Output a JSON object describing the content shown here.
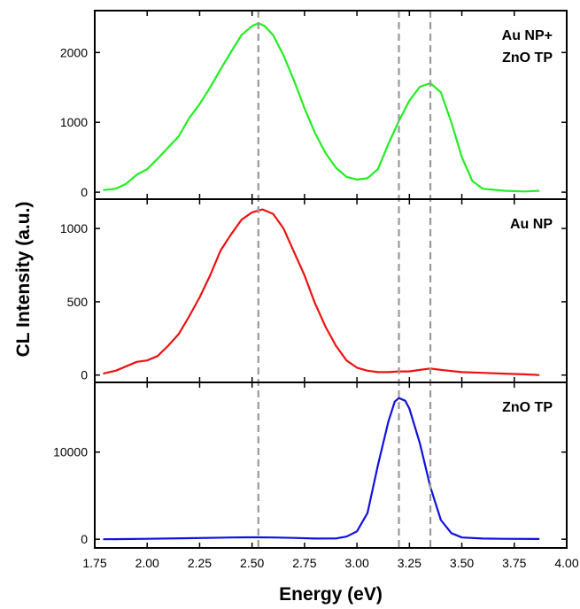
{
  "chart_data": {
    "type": "line",
    "xlabel": "Energy (eV)",
    "ylabel": "CL Intensity (a.u.)",
    "xlim": [
      1.75,
      4.0
    ],
    "x_ticks": [
      "1.75",
      "2.00",
      "2.25",
      "2.50",
      "2.75",
      "3.00",
      "3.25",
      "3.50",
      "3.75",
      "4.00"
    ],
    "reference_lines_x": [
      2.53,
      3.2,
      3.35
    ],
    "reference_line_color": "#999999",
    "panels": [
      {
        "label_lines": [
          "Au NP+",
          "ZnO TP"
        ],
        "ylim": [
          -100,
          2600
        ],
        "y_ticks": [
          0,
          1000,
          2000
        ],
        "y_tick_labels": [
          "0",
          "1000",
          "2000"
        ],
        "series": [
          {
            "color": "#22ee22",
            "x": [
              1.79,
              1.85,
              1.9,
              1.95,
              2.0,
              2.05,
              2.1,
              2.15,
              2.2,
              2.25,
              2.3,
              2.35,
              2.4,
              2.45,
              2.5,
              2.53,
              2.56,
              2.6,
              2.65,
              2.7,
              2.75,
              2.8,
              2.85,
              2.9,
              2.95,
              3.0,
              3.05,
              3.1,
              3.15,
              3.2,
              3.25,
              3.3,
              3.35,
              3.4,
              3.45,
              3.5,
              3.55,
              3.6,
              3.7,
              3.8,
              3.87
            ],
            "y": [
              30,
              50,
              120,
              250,
              330,
              480,
              640,
              800,
              1060,
              1260,
              1500,
              1760,
              2010,
              2250,
              2380,
              2420,
              2380,
              2250,
              1960,
              1600,
              1200,
              850,
              560,
              350,
              220,
              180,
              200,
              330,
              690,
              1020,
              1310,
              1510,
              1560,
              1430,
              1000,
              500,
              160,
              50,
              20,
              10,
              20
            ]
          }
        ]
      },
      {
        "label_lines": [
          "Au NP"
        ],
        "ylim": [
          -50,
          1200
        ],
        "y_ticks": [
          0,
          500,
          1000
        ],
        "y_tick_labels": [
          "0",
          "500",
          "1000"
        ],
        "series": [
          {
            "color": "#ee1111",
            "x": [
              1.79,
              1.85,
              1.9,
              1.95,
              2.0,
              2.05,
              2.1,
              2.15,
              2.2,
              2.25,
              2.3,
              2.35,
              2.4,
              2.45,
              2.5,
              2.55,
              2.6,
              2.65,
              2.7,
              2.75,
              2.8,
              2.85,
              2.9,
              2.95,
              3.0,
              3.05,
              3.1,
              3.15,
              3.2,
              3.25,
              3.3,
              3.35,
              3.4,
              3.5,
              3.6,
              3.7,
              3.8,
              3.87
            ],
            "y": [
              10,
              30,
              60,
              90,
              100,
              130,
              200,
              280,
              400,
              530,
              680,
              850,
              960,
              1060,
              1110,
              1130,
              1100,
              1000,
              840,
              680,
              490,
              330,
              200,
              100,
              50,
              30,
              20,
              20,
              25,
              25,
              35,
              45,
              35,
              20,
              15,
              10,
              5,
              0
            ]
          }
        ]
      },
      {
        "label_lines": [
          "ZnO TP"
        ],
        "ylim": [
          -1000,
          18000
        ],
        "y_ticks": [
          0,
          10000
        ],
        "y_tick_labels": [
          "0",
          "10000"
        ],
        "series": [
          {
            "color": "#1111dd",
            "x": [
              1.79,
              2.0,
              2.2,
              2.4,
              2.5,
              2.6,
              2.7,
              2.8,
              2.9,
              2.95,
              3.0,
              3.05,
              3.1,
              3.15,
              3.18,
              3.2,
              3.23,
              3.25,
              3.3,
              3.35,
              3.4,
              3.45,
              3.5,
              3.6,
              3.7,
              3.87
            ],
            "y": [
              0,
              50,
              120,
              200,
              220,
              200,
              150,
              80,
              90,
              300,
              900,
              3000,
              8500,
              13500,
              15800,
              16200,
              15900,
              15000,
              11000,
              6000,
              2200,
              700,
              200,
              80,
              50,
              30
            ]
          }
        ]
      }
    ]
  }
}
